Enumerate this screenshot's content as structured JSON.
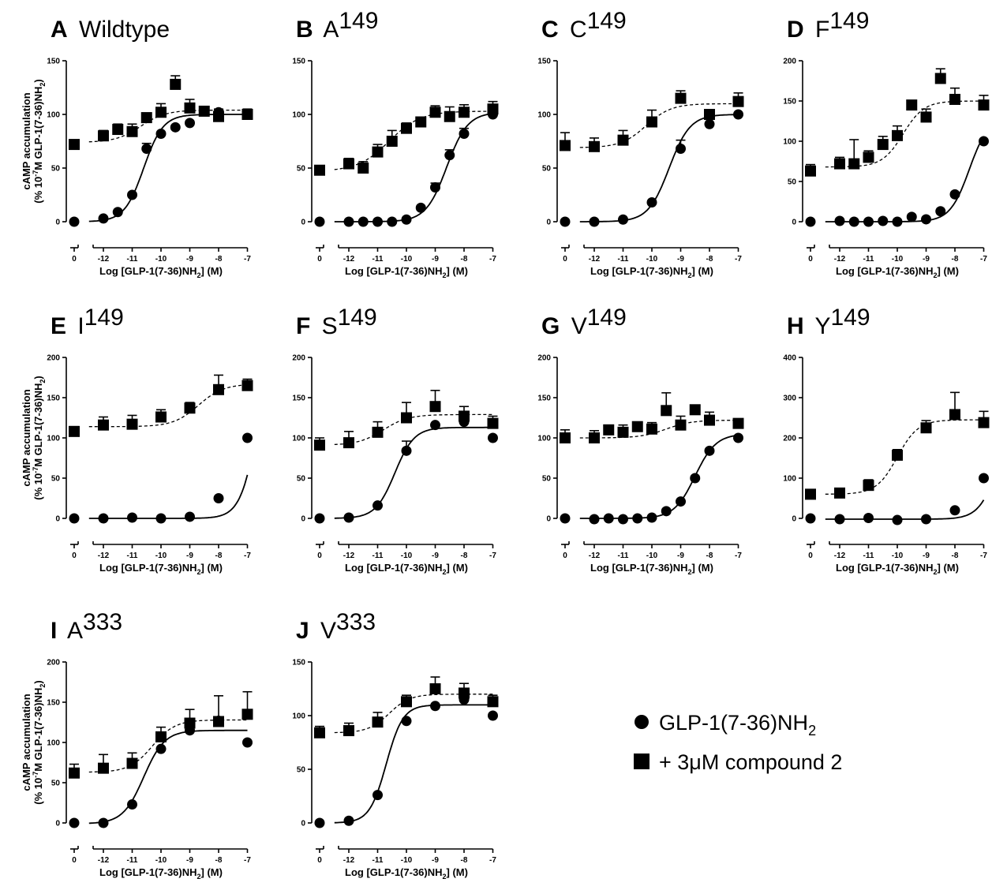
{
  "legend": {
    "items": [
      {
        "marker": "circle",
        "label_main": "GLP-1(7-36)NH",
        "label_sub": "2",
        "line_style": "solid"
      },
      {
        "marker": "square",
        "label_main": "+ 3μM compound 2",
        "label_sub": "",
        "line_style": "dashed"
      }
    ]
  },
  "axes_text": {
    "xlabel_main": "Log [GLP-1(7-36)NH",
    "xlabel_sub": "2",
    "xlabel_end": "] (M)",
    "ylabel_line1": "cAMP accumulation",
    "ylabel_line2_a": "(% 10",
    "ylabel_line2_sup": "-7",
    "ylabel_line2_b": "M GLP-1(7-36)NH",
    "ylabel_line2_sub": "2",
    "ylabel_line2_c": ")"
  },
  "colors": {
    "marker": "#000000",
    "line": "#000000",
    "background": "#ffffff"
  },
  "chart_data": [
    {
      "type": "scatter",
      "panel": "A",
      "name": "Wildtype",
      "name_sup": "",
      "xticks": [
        "0",
        "-12",
        "-11",
        "-10",
        "-9",
        "-8",
        "-7"
      ],
      "xlim": [
        -12.5,
        -7
      ],
      "ylim": [
        0,
        150
      ],
      "yticks": [
        0,
        50,
        100,
        150
      ],
      "xlabel_shown": true,
      "ylabel_shown": true,
      "series": [
        {
          "name": "GLP-1(7-36)NH2",
          "marker": "circle",
          "basal": 0,
          "x": [
            -12,
            -11.5,
            -11,
            -10.5,
            -10,
            -9.5,
            -9,
            -8,
            -7
          ],
          "y": [
            3,
            9,
            25,
            68,
            82,
            88,
            92,
            102,
            100
          ],
          "err": [
            0,
            0,
            0,
            5,
            0,
            0,
            0,
            0,
            0
          ],
          "fit": {
            "bottom": 0,
            "top": 100,
            "logec50": -10.6,
            "hill": 1.3
          }
        },
        {
          "name": "+ 3μM compound 2",
          "marker": "square",
          "basal": 72,
          "x": [
            -12,
            -11.5,
            -11,
            -10.5,
            -10,
            -9.5,
            -9,
            -8.5,
            -8,
            -7
          ],
          "y": [
            80,
            86,
            84,
            97,
            102,
            128,
            106,
            103,
            98,
            100
          ],
          "err": [
            5,
            5,
            7,
            0,
            8,
            8,
            8,
            0,
            7,
            5
          ],
          "basal_err": 4,
          "fit": {
            "bottom": 74,
            "top": 104,
            "logec50": -10.7,
            "hill": 1
          }
        }
      ]
    },
    {
      "type": "scatter",
      "panel": "B",
      "name": "A",
      "name_sup": "149",
      "xticks": [
        "0",
        "-12",
        "-11",
        "-10",
        "-9",
        "-8",
        "-7"
      ],
      "xlim": [
        -12.5,
        -7
      ],
      "ylim": [
        0,
        150
      ],
      "yticks": [
        0,
        50,
        100,
        150
      ],
      "xlabel_shown": true,
      "ylabel_shown": false,
      "series": [
        {
          "name": "GLP-1(7-36)NH2",
          "marker": "circle",
          "basal": 0,
          "x": [
            -12,
            -11.5,
            -11,
            -10.5,
            -10,
            -9.5,
            -9,
            -8.5,
            -8,
            -7
          ],
          "y": [
            0,
            0,
            0,
            0,
            2,
            13,
            32,
            62,
            82,
            100
          ],
          "err": [
            0,
            0,
            0,
            0,
            0,
            0,
            4,
            5,
            5,
            0
          ],
          "fit": {
            "bottom": 0,
            "top": 102,
            "logec50": -8.6,
            "hill": 1.2
          }
        },
        {
          "name": "+ 3μM compound 2",
          "marker": "square",
          "basal": 48,
          "x": [
            -12,
            -11.5,
            -11,
            -10.5,
            -10,
            -9.5,
            -9,
            -8.5,
            -8,
            -7
          ],
          "y": [
            54,
            50,
            65,
            75,
            87,
            93,
            102,
            98,
            102,
            105
          ],
          "err": [
            5,
            6,
            7,
            10,
            5,
            4,
            6,
            9,
            7,
            7
          ],
          "basal_err": 4,
          "fit": {
            "bottom": 47,
            "top": 103,
            "logec50": -10.6,
            "hill": 0.8
          }
        }
      ]
    },
    {
      "type": "scatter",
      "panel": "C",
      "name": "C",
      "name_sup": "149",
      "xticks": [
        "0",
        "-12",
        "-11",
        "-10",
        "-9",
        "-8",
        "-7"
      ],
      "xlim": [
        -12.5,
        -7
      ],
      "ylim": [
        0,
        150
      ],
      "yticks": [
        0,
        50,
        100,
        150
      ],
      "xlabel_shown": true,
      "ylabel_shown": false,
      "series": [
        {
          "name": "GLP-1(7-36)NH2",
          "marker": "circle",
          "basal": 0,
          "x": [
            -12,
            -11,
            -10,
            -9,
            -8,
            -7
          ],
          "y": [
            0,
            2,
            18,
            68,
            91,
            100
          ],
          "err": [
            0,
            0,
            0,
            8,
            5,
            0
          ],
          "fit": {
            "bottom": 0,
            "top": 100,
            "logec50": -9.4,
            "hill": 1.2
          }
        },
        {
          "name": "+ 3μM compound 2",
          "marker": "square",
          "basal": 71,
          "x": [
            -12,
            -11,
            -10,
            -9,
            -8,
            -7
          ],
          "y": [
            70,
            76,
            93,
            115,
            100,
            112
          ],
          "err": [
            8,
            9,
            11,
            7,
            0,
            8
          ],
          "basal_err": 12,
          "fit": {
            "bottom": 69,
            "top": 110,
            "logec50": -10.2,
            "hill": 1
          }
        }
      ]
    },
    {
      "type": "scatter",
      "panel": "D",
      "name": "F",
      "name_sup": "149",
      "xticks": [
        "0",
        "-12",
        "-11",
        "-10",
        "-9",
        "-8",
        "-7"
      ],
      "xlim": [
        -12.5,
        -7
      ],
      "ylim": [
        0,
        200
      ],
      "yticks": [
        0,
        50,
        100,
        150,
        200
      ],
      "xlabel_shown": true,
      "ylabel_shown": false,
      "series": [
        {
          "name": "GLP-1(7-36)NH2",
          "marker": "circle",
          "basal": 0,
          "x": [
            -12,
            -11.5,
            -11,
            -10.5,
            -10,
            -9.5,
            -9,
            -8.5,
            -8,
            -7
          ],
          "y": [
            1,
            0,
            0,
            1,
            0,
            6,
            3,
            13,
            34,
            100
          ],
          "err": [
            0,
            0,
            0,
            0,
            0,
            0,
            0,
            0,
            0,
            0
          ],
          "fit": {
            "bottom": 0,
            "top": 130,
            "logec50": -7.5,
            "hill": 1.3
          }
        },
        {
          "name": "+ 3μM compound 2",
          "marker": "square",
          "basal": 63,
          "x": [
            -12,
            -11.5,
            -11,
            -10.5,
            -10,
            -9.5,
            -9,
            -8.5,
            -8,
            -7
          ],
          "y": [
            72,
            72,
            80,
            96,
            107,
            145,
            130,
            178,
            152,
            145
          ],
          "err": [
            8,
            30,
            8,
            10,
            12,
            0,
            10,
            12,
            14,
            12
          ],
          "basal_err": 8,
          "fit": {
            "bottom": 68,
            "top": 150,
            "logec50": -9.8,
            "hill": 1.2
          }
        }
      ]
    },
    {
      "type": "scatter",
      "panel": "E",
      "name": "I",
      "name_sup": "149",
      "xticks": [
        "0",
        "-12",
        "-11",
        "-10",
        "-9",
        "-8",
        "-7"
      ],
      "xlim": [
        -12.5,
        -7
      ],
      "ylim": [
        0,
        200
      ],
      "yticks": [
        0,
        50,
        100,
        150,
        200
      ],
      "xlabel_shown": true,
      "ylabel_shown": true,
      "series": [
        {
          "name": "GLP-1(7-36)NH2",
          "marker": "circle",
          "basal": 0,
          "x": [
            -12,
            -11,
            -10,
            -9,
            -8,
            -7
          ],
          "y": [
            0,
            1,
            0,
            2,
            25,
            100
          ],
          "err": [
            0,
            0,
            0,
            0,
            0,
            0
          ],
          "fit": {
            "bottom": 0,
            "top": 250,
            "logec50": -6.6,
            "hill": 1.4
          }
        },
        {
          "name": "+ 3μM compound 2",
          "marker": "square",
          "basal": 108,
          "x": [
            -12,
            -11,
            -10,
            -9,
            -8,
            -7
          ],
          "y": [
            116,
            117,
            126,
            137,
            160,
            165
          ],
          "err": [
            10,
            11,
            9,
            7,
            18,
            8
          ],
          "basal_err": 6,
          "fit": {
            "bottom": 114,
            "top": 167,
            "logec50": -8.7,
            "hill": 1
          }
        }
      ]
    },
    {
      "type": "scatter",
      "panel": "F",
      "name": "S",
      "name_sup": "149",
      "xticks": [
        "0",
        "-12",
        "-11",
        "-10",
        "-9",
        "-8",
        "-7"
      ],
      "xlim": [
        -12.5,
        -7
      ],
      "ylim": [
        0,
        200
      ],
      "yticks": [
        0,
        50,
        100,
        150,
        200
      ],
      "xlabel_shown": true,
      "ylabel_shown": false,
      "series": [
        {
          "name": "GLP-1(7-36)NH2",
          "marker": "circle",
          "basal": 0,
          "x": [
            -12,
            -11,
            -10,
            -9,
            -8,
            -7
          ],
          "y": [
            1,
            16,
            84,
            116,
            120,
            100
          ],
          "err": [
            0,
            0,
            12,
            0,
            0,
            0
          ],
          "fit": {
            "bottom": 0,
            "top": 113,
            "logec50": -10.4,
            "hill": 1.3
          }
        },
        {
          "name": "+ 3μM compound 2",
          "marker": "square",
          "basal": 91,
          "x": [
            -12,
            -11,
            -10,
            -9,
            -8,
            -7
          ],
          "y": [
            94,
            107,
            125,
            139,
            127,
            118
          ],
          "err": [
            14,
            13,
            19,
            20,
            12,
            9
          ],
          "basal_err": 9,
          "fit": {
            "bottom": 91,
            "top": 129,
            "logec50": -10.8,
            "hill": 1
          }
        }
      ]
    },
    {
      "type": "scatter",
      "panel": "G",
      "name": "V",
      "name_sup": "149",
      "xticks": [
        "0",
        "-12",
        "-11",
        "-10",
        "-9",
        "-8",
        "-7"
      ],
      "xlim": [
        -12.5,
        -7
      ],
      "ylim": [
        0,
        200
      ],
      "yticks": [
        0,
        50,
        100,
        150,
        200
      ],
      "xlabel_shown": true,
      "ylabel_shown": false,
      "series": [
        {
          "name": "GLP-1(7-36)NH2",
          "marker": "circle",
          "basal": 0,
          "x": [
            -12,
            -11.5,
            -11,
            -10.5,
            -10,
            -9.5,
            -9,
            -8.5,
            -8,
            -7
          ],
          "y": [
            -1,
            0,
            -1,
            0,
            1,
            9,
            21,
            50,
            84,
            100
          ],
          "err": [
            0,
            0,
            0,
            0,
            0,
            0,
            0,
            0,
            0,
            0
          ],
          "fit": {
            "bottom": 0,
            "top": 105,
            "logec50": -8.5,
            "hill": 1.2
          }
        },
        {
          "name": "+ 3μM compound 2",
          "marker": "square",
          "basal": 100,
          "x": [
            -12,
            -11.5,
            -11,
            -10.5,
            -10,
            -9.5,
            -9,
            -8.5,
            -8,
            -7
          ],
          "y": [
            100,
            110,
            107,
            114,
            111,
            134,
            116,
            135,
            122,
            118
          ],
          "err": [
            9,
            0,
            9,
            0,
            8,
            22,
            11,
            0,
            10,
            0
          ],
          "basal_err": 10,
          "fit": {
            "bottom": 100,
            "top": 122,
            "logec50": -9.5,
            "hill": 1
          }
        }
      ]
    },
    {
      "type": "scatter",
      "panel": "H",
      "name": "Y",
      "name_sup": "149",
      "xticks": [
        "0",
        "-12",
        "-11",
        "-10",
        "-9",
        "-8",
        "-7"
      ],
      "xlim": [
        -12.5,
        -7
      ],
      "ylim": [
        0,
        400
      ],
      "yticks": [
        0,
        100,
        200,
        300,
        400
      ],
      "xlabel_shown": true,
      "ylabel_shown": false,
      "series": [
        {
          "name": "GLP-1(7-36)NH2",
          "marker": "circle",
          "basal": 0,
          "x": [
            -12,
            -11,
            -10,
            -9,
            -8,
            -7
          ],
          "y": [
            -2,
            1,
            -4,
            -2,
            20,
            100
          ],
          "err": [
            0,
            0,
            0,
            0,
            0,
            0
          ],
          "fit": {
            "bottom": -2,
            "top": 260,
            "logec50": -6.5,
            "hill": 1.3
          }
        },
        {
          "name": "+ 3μM compound 2",
          "marker": "square",
          "basal": 60,
          "x": [
            -12,
            -11,
            -10,
            -9,
            -8,
            -7
          ],
          "y": [
            63,
            82,
            157,
            225,
            258,
            238
          ],
          "err": [
            8,
            14,
            14,
            18,
            55,
            28
          ],
          "basal_err": 6,
          "fit": {
            "bottom": 60,
            "top": 245,
            "logec50": -10,
            "hill": 1.2
          }
        }
      ]
    },
    {
      "type": "scatter",
      "panel": "I",
      "name": "A",
      "name_sup": "333",
      "xticks": [
        "0",
        "-12",
        "-11",
        "-10",
        "-9",
        "-8",
        "-7"
      ],
      "xlim": [
        -12.5,
        -7
      ],
      "ylim": [
        0,
        200
      ],
      "yticks": [
        0,
        50,
        100,
        150,
        200
      ],
      "xlabel_shown": true,
      "ylabel_shown": true,
      "series": [
        {
          "name": "GLP-1(7-36)NH2",
          "marker": "circle",
          "basal": 0,
          "x": [
            -12,
            -11,
            -10,
            -9,
            -8,
            -7
          ],
          "y": [
            0,
            23,
            92,
            115,
            127,
            100
          ],
          "err": [
            0,
            0,
            0,
            0,
            0,
            0
          ],
          "fit": {
            "bottom": -1,
            "top": 115,
            "logec50": -10.6,
            "hill": 1.2
          }
        },
        {
          "name": "+ 3μM compound 2",
          "marker": "square",
          "basal": 62,
          "x": [
            -12,
            -11,
            -10,
            -9,
            -8,
            -7
          ],
          "y": [
            68,
            74,
            107,
            124,
            126,
            135
          ],
          "err": [
            17,
            13,
            12,
            17,
            32,
            28
          ],
          "basal_err": 11,
          "fit": {
            "bottom": 63,
            "top": 128,
            "logec50": -10.3,
            "hill": 1.1
          }
        }
      ]
    },
    {
      "type": "scatter",
      "panel": "J",
      "name": "V",
      "name_sup": "333",
      "xticks": [
        "0",
        "-12",
        "-11",
        "-10",
        "-9",
        "-8",
        "-7"
      ],
      "xlim": [
        -12.5,
        -7
      ],
      "ylim": [
        0,
        150
      ],
      "yticks": [
        0,
        50,
        100,
        150
      ],
      "xlabel_shown": true,
      "ylabel_shown": false,
      "series": [
        {
          "name": "GLP-1(7-36)NH2",
          "marker": "circle",
          "basal": 0,
          "x": [
            -12,
            -11,
            -10,
            -9,
            -8,
            -7
          ],
          "y": [
            2,
            26,
            95,
            109,
            115,
            100
          ],
          "err": [
            0,
            0,
            0,
            0,
            0,
            0
          ],
          "fit": {
            "bottom": 0,
            "top": 110,
            "logec50": -10.7,
            "hill": 1.5
          }
        },
        {
          "name": "+ 3μM compound 2",
          "marker": "square",
          "basal": 84,
          "x": [
            -12,
            -11,
            -10,
            -9,
            -8,
            -7
          ],
          "y": [
            86,
            94,
            113,
            125,
            121,
            113
          ],
          "err": [
            7,
            9,
            6,
            11,
            9,
            6
          ],
          "basal_err": 6,
          "fit": {
            "bottom": 84,
            "top": 120,
            "logec50": -10.6,
            "hill": 1.2
          }
        }
      ]
    }
  ]
}
